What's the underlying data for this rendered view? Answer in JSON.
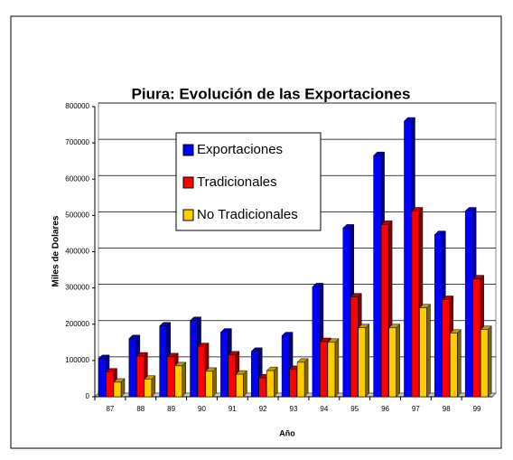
{
  "chart_data": {
    "type": "bar3d",
    "title": "Piura: Evolución de las Exportaciones",
    "x_label": "Año",
    "y_label": "Miles de Dolares",
    "categories": [
      "87",
      "88",
      "89",
      "90",
      "91",
      "92",
      "93",
      "94",
      "95",
      "96",
      "97",
      "98",
      "99"
    ],
    "series": [
      {
        "name": "Exportaciones",
        "color": "#0000ff",
        "values": [
          105000,
          160000,
          195000,
          210000,
          178000,
          125000,
          168000,
          303000,
          465000,
          665000,
          760000,
          447000,
          512000
        ]
      },
      {
        "name": "Tradicionales",
        "color": "#ff0000",
        "values": [
          68000,
          112000,
          110000,
          138000,
          115000,
          52000,
          75000,
          152000,
          275000,
          475000,
          512000,
          268000,
          325000
        ]
      },
      {
        "name": "No Tradicionales",
        "color": "#ffcc00",
        "values": [
          40000,
          48000,
          85000,
          70000,
          62000,
          72000,
          95000,
          150000,
          190000,
          190000,
          245000,
          175000,
          185000
        ]
      }
    ],
    "ylim": [
      0,
      800000
    ],
    "yticks": [
      0,
      100000,
      200000,
      300000,
      400000,
      500000,
      600000,
      700000,
      800000
    ],
    "grid": true
  }
}
